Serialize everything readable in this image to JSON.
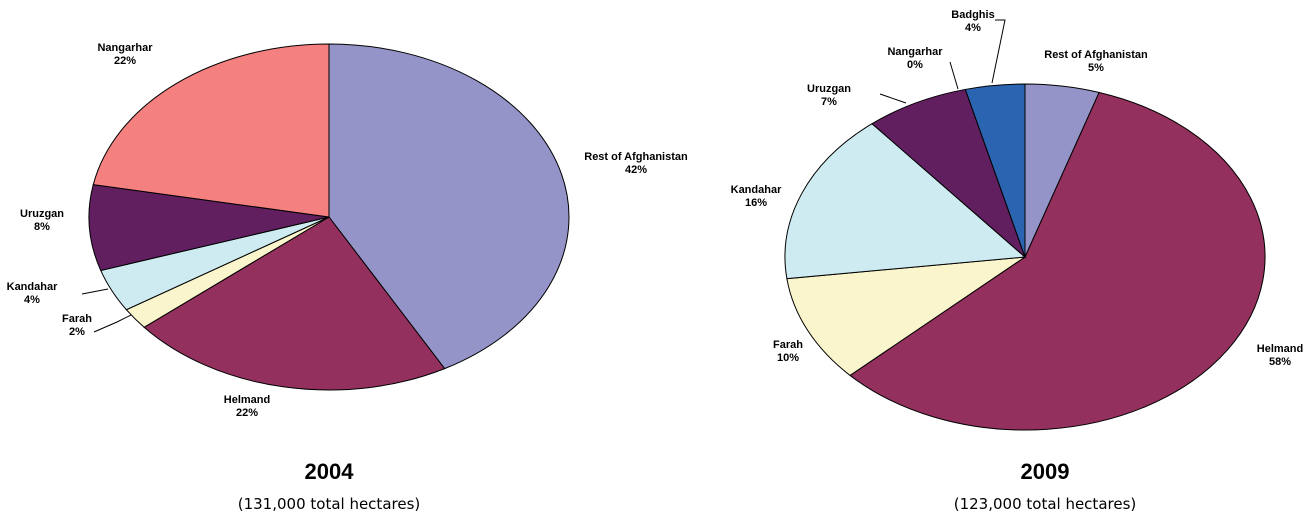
{
  "chart_data": [
    {
      "type": "pie",
      "title": "2004",
      "subtitle": "(131,000 total hectares)",
      "slices": [
        {
          "label": "Rest of Afghanistan",
          "pct_label": "42%",
          "value": 42,
          "color": "#9494C8"
        },
        {
          "label": "Helmand",
          "pct_label": "22%",
          "value": 22,
          "color": "#94305E"
        },
        {
          "label": "Farah",
          "pct_label": "2%",
          "value": 2,
          "color": "#FAF5CC"
        },
        {
          "label": "Kandahar",
          "pct_label": "4%",
          "value": 4,
          "color": "#CDEBF0"
        },
        {
          "label": "Uruzgan",
          "pct_label": "8%",
          "value": 8,
          "color": "#611F60"
        },
        {
          "label": "Nangarhar",
          "pct_label": "22%",
          "value": 22,
          "color": "#F48080"
        }
      ]
    },
    {
      "type": "pie",
      "title": "2009",
      "subtitle": "(123,000 total hectares)",
      "slices": [
        {
          "label": "Rest of Afghanistan",
          "pct_label": "5%",
          "value": 5,
          "color": "#9494C8"
        },
        {
          "label": "Helmand",
          "pct_label": "58%",
          "value": 58,
          "color": "#94305E"
        },
        {
          "label": "Farah",
          "pct_label": "10%",
          "value": 10,
          "color": "#FAF5CC"
        },
        {
          "label": "Kandahar",
          "pct_label": "16%",
          "value": 16,
          "color": "#CDEBF0"
        },
        {
          "label": "Uruzgan",
          "pct_label": "7%",
          "value": 7,
          "color": "#611F60"
        },
        {
          "label": "Nangarhar",
          "pct_label": "0%",
          "value": 0,
          "color": "#F48080"
        },
        {
          "label": "Badghis",
          "pct_label": "4%",
          "value": 4,
          "color": "#2B64B0"
        }
      ]
    }
  ]
}
